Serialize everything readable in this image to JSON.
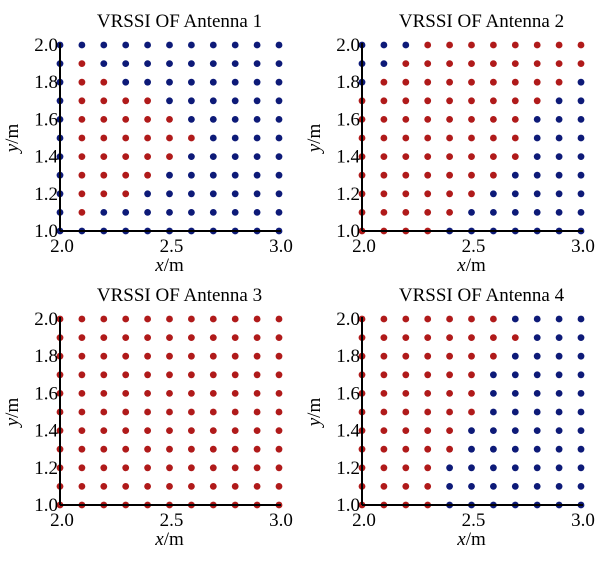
{
  "colors": {
    "red": "#b01a1a",
    "blue": "#0d1a78",
    "axis": "#000000"
  },
  "chart_data": [
    {
      "type": "scatter",
      "title": "VRSSI OF Antenna 1",
      "xlabel_var": "x",
      "xlabel_unit": "/m",
      "ylabel_var": "y",
      "ylabel_unit": "/m",
      "xlim": [
        2.0,
        3.0
      ],
      "ylim": [
        1.0,
        2.0
      ],
      "x": [
        2.0,
        2.1,
        2.2,
        2.3,
        2.4,
        2.5,
        2.6,
        2.7,
        2.8,
        2.9,
        3.0
      ],
      "y": [
        1.0,
        1.1,
        1.2,
        1.3,
        1.4,
        1.5,
        1.6,
        1.7,
        1.8,
        1.9,
        2.0
      ],
      "xticks": [
        "2.0",
        "2.5",
        "3.0"
      ],
      "yticks": [
        "1.0",
        "1.2",
        "1.4",
        "1.6",
        "1.8",
        "2.0"
      ],
      "grid_colors_top_to_bottom": [
        "bbbbbbbbbbb",
        "brbbbbbbbbb",
        "brrbbbbbbbb",
        "brrrrbbbbbb",
        "brrrrrbbbbb",
        "brrrrrrbbbb",
        "brrrrrbbbbb",
        "brrrrbbbbbb",
        "brrrbbbbbbb",
        "brbbbbbbbbb",
        "bbbbbbbbbbb"
      ]
    },
    {
      "type": "scatter",
      "title": "VRSSI OF Antenna 2",
      "xlabel_var": "x",
      "xlabel_unit": "/m",
      "ylabel_var": "y",
      "ylabel_unit": "/m",
      "xlim": [
        2.0,
        3.0
      ],
      "ylim": [
        1.0,
        2.0
      ],
      "x": [
        2.0,
        2.1,
        2.2,
        2.3,
        2.4,
        2.5,
        2.6,
        2.7,
        2.8,
        2.9,
        3.0
      ],
      "y": [
        1.0,
        1.1,
        1.2,
        1.3,
        1.4,
        1.5,
        1.6,
        1.7,
        1.8,
        1.9,
        2.0
      ],
      "xticks": [
        "2.0",
        "2.5",
        "3.0"
      ],
      "yticks": [
        "1.0",
        "1.2",
        "1.4",
        "1.6",
        "1.8",
        "2.0"
      ],
      "grid_colors_top_to_bottom": [
        "bbbrrrrrrrr",
        "bbrrrrrrrrr",
        "brrrrrrrrrb",
        "rrrrrrrrrbb",
        "rrrrrrrrbbb",
        "rrrrrrrrbbb",
        "rrrrrrrrbbb",
        "rrrrrrrbbbb",
        "rrrrrrbbbbb",
        "rrrrrbbbbbb",
        "rrrrbbbbbbb"
      ]
    },
    {
      "type": "scatter",
      "title": "VRSSI OF Antenna 3",
      "xlabel_var": "x",
      "xlabel_unit": "/m",
      "ylabel_var": "y",
      "ylabel_unit": "/m",
      "xlim": [
        2.0,
        3.0
      ],
      "ylim": [
        1.0,
        2.0
      ],
      "x": [
        2.0,
        2.1,
        2.2,
        2.3,
        2.4,
        2.5,
        2.6,
        2.7,
        2.8,
        2.9,
        3.0
      ],
      "y": [
        1.0,
        1.1,
        1.2,
        1.3,
        1.4,
        1.5,
        1.6,
        1.7,
        1.8,
        1.9,
        2.0
      ],
      "xticks": [
        "2.0",
        "2.5",
        "3.0"
      ],
      "yticks": [
        "1.0",
        "1.2",
        "1.4",
        "1.6",
        "1.8",
        "2.0"
      ],
      "grid_colors_top_to_bottom": [
        "rrrrrrrrrrr",
        "rrrrrrrrrrr",
        "rrrrrrrrrrr",
        "rrrrrrrrrrr",
        "rrrrrrrrrrr",
        "rrrrrrrrrrr",
        "rrrrrrrrrrr",
        "rrrrrrrrrrr",
        "rrrrrrrrrrr",
        "rrrrrrrrrrr",
        "rrrrrrrrrrr"
      ]
    },
    {
      "type": "scatter",
      "title": "VRSSI OF Antenna 4",
      "xlabel_var": "x",
      "xlabel_unit": "/m",
      "ylabel_var": "y",
      "ylabel_unit": "/m",
      "xlim": [
        2.0,
        3.0
      ],
      "ylim": [
        1.0,
        2.0
      ],
      "x": [
        2.0,
        2.1,
        2.2,
        2.3,
        2.4,
        2.5,
        2.6,
        2.7,
        2.8,
        2.9,
        3.0
      ],
      "y": [
        1.0,
        1.1,
        1.2,
        1.3,
        1.4,
        1.5,
        1.6,
        1.7,
        1.8,
        1.9,
        2.0
      ],
      "xticks": [
        "2.0",
        "2.5",
        "3.0"
      ],
      "yticks": [
        "1.0",
        "1.2",
        "1.4",
        "1.6",
        "1.8",
        "2.0"
      ],
      "grid_colors_top_to_bottom": [
        "rrrrrrrbbbb",
        "rrrrrrrrbbb",
        "rrrrrrrbbbb",
        "rrrrrrbbbbb",
        "rrrrrrbbbbb",
        "rrrrrrbbbbb",
        "rrrrrbbbbbb",
        "rrrrrbbbbbb",
        "rrrrbbbbbbb",
        "rrrrbbbbbbb",
        "rrrrbbbbbbb"
      ]
    }
  ]
}
